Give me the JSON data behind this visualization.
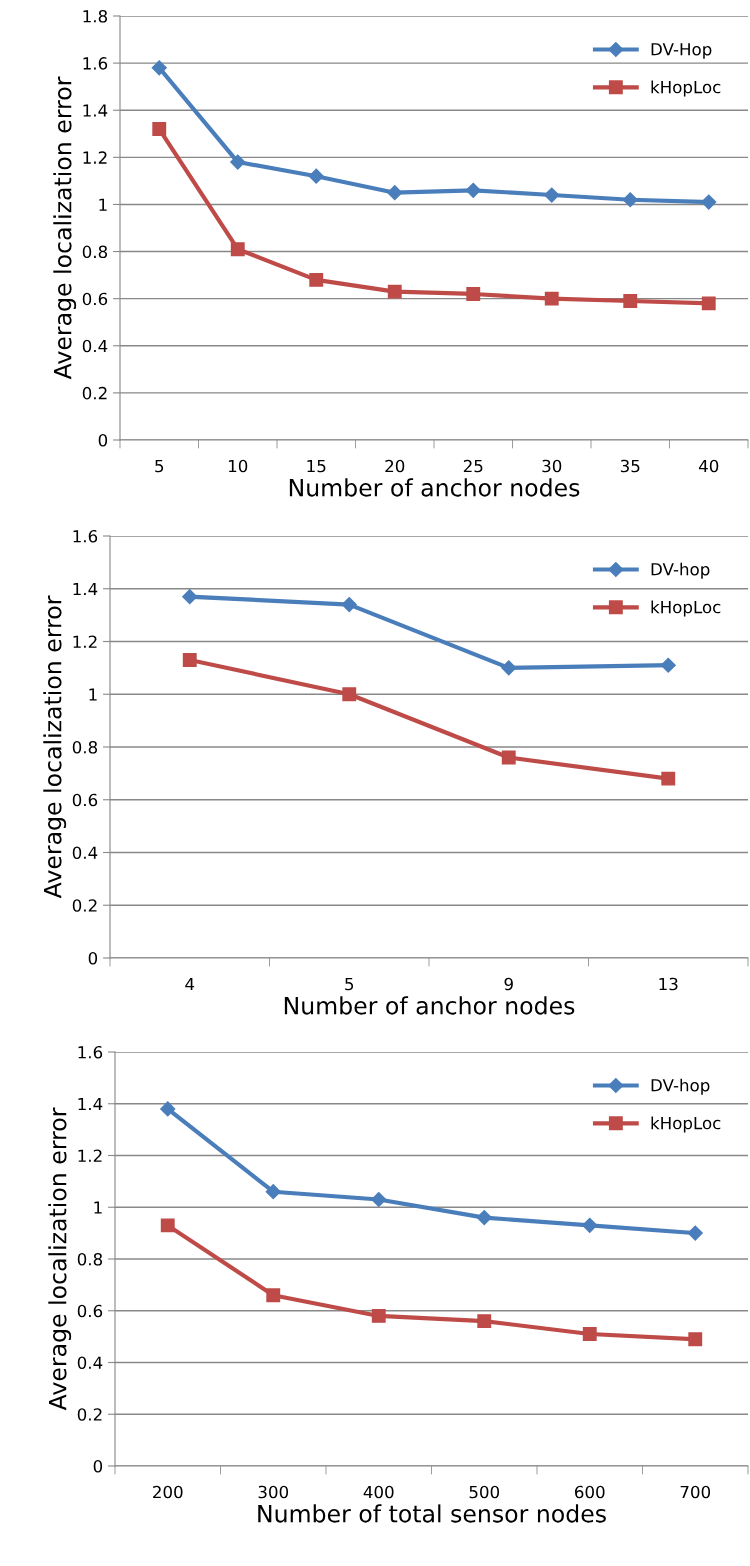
{
  "chart_data": [
    {
      "type": "line",
      "xlabel": "Number of anchor nodes",
      "ylabel": "Average localization error",
      "categories": [
        "5",
        "10",
        "15",
        "20",
        "25",
        "30",
        "35",
        "40"
      ],
      "ylim": [
        0,
        1.8
      ],
      "yticks": [
        0,
        0.2,
        0.4,
        0.6,
        0.8,
        1,
        1.2,
        1.4,
        1.6,
        1.8
      ],
      "grid": "y",
      "legend": "top right",
      "series": [
        {
          "name": "DV-Hop",
          "color": "#4a7ebb",
          "marker": "diamond",
          "values": [
            1.58,
            1.18,
            1.12,
            1.05,
            1.06,
            1.04,
            1.02,
            1.01
          ]
        },
        {
          "name": "kHopLoc",
          "color": "#be4b48",
          "marker": "square",
          "values": [
            1.32,
            0.81,
            0.68,
            0.63,
            0.62,
            0.6,
            0.59,
            0.58
          ]
        }
      ]
    },
    {
      "type": "line",
      "xlabel": "Number of anchor nodes",
      "ylabel": "Average localization error",
      "categories": [
        "4",
        "5",
        "9",
        "13"
      ],
      "ylim": [
        0,
        1.6
      ],
      "yticks": [
        0,
        0.2,
        0.4,
        0.6,
        0.8,
        1,
        1.2,
        1.4,
        1.6
      ],
      "grid": "y",
      "legend": "top right",
      "series": [
        {
          "name": "DV-hop",
          "color": "#4a7ebb",
          "marker": "diamond",
          "values": [
            1.37,
            1.34,
            1.1,
            1.11
          ]
        },
        {
          "name": "kHopLoc",
          "color": "#be4b48",
          "marker": "square",
          "values": [
            1.13,
            1.0,
            0.76,
            0.68
          ]
        }
      ]
    },
    {
      "type": "line",
      "xlabel": "Number of total sensor nodes",
      "ylabel": "Average localization error",
      "categories": [
        "200",
        "300",
        "400",
        "500",
        "600",
        "700"
      ],
      "ylim": [
        0,
        1.6
      ],
      "yticks": [
        0,
        0.2,
        0.4,
        0.6,
        0.8,
        1,
        1.2,
        1.4,
        1.6
      ],
      "grid": "y",
      "legend": "top right",
      "series": [
        {
          "name": "DV-hop",
          "color": "#4a7ebb",
          "marker": "diamond",
          "values": [
            1.38,
            1.06,
            1.03,
            0.96,
            0.93,
            0.9
          ]
        },
        {
          "name": "kHopLoc",
          "color": "#be4b48",
          "marker": "square",
          "values": [
            0.93,
            0.66,
            0.58,
            0.56,
            0.51,
            0.49
          ]
        }
      ]
    }
  ]
}
